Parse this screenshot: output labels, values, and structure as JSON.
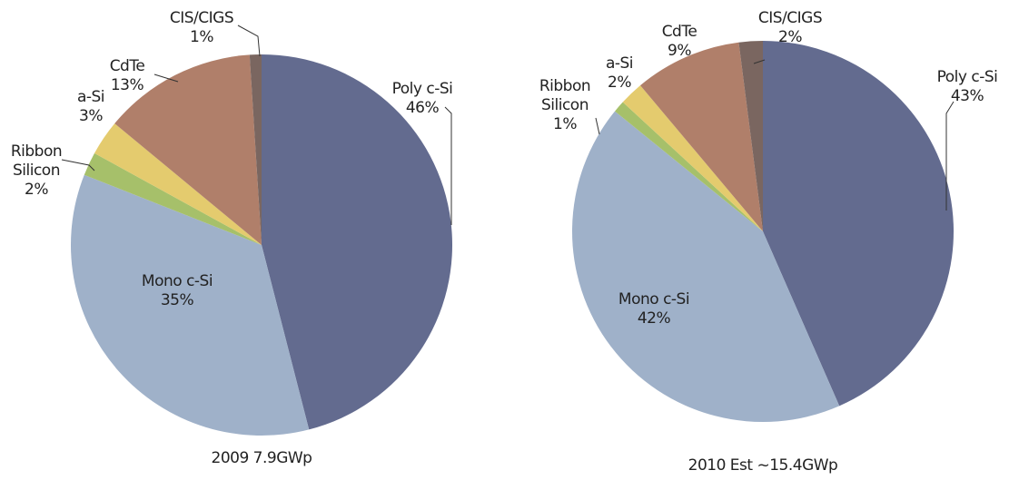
{
  "chart_data": [
    {
      "type": "pie",
      "title": "2009 7.9GWp",
      "categories": [
        "Poly c-Si",
        "Mono c-Si",
        "Ribbon Silicon",
        "a-Si",
        "CdTe",
        "CIS/CIGS"
      ],
      "values": [
        46,
        35,
        2,
        3,
        13,
        1
      ],
      "value_labels": [
        "46%",
        "35%",
        "2%",
        "3%",
        "13%",
        "1%"
      ],
      "colors": [
        "#636b8f",
        "#9fb1c9",
        "#a6c06a",
        "#e4cb6e",
        "#b07f6a",
        "#7a6660"
      ]
    },
    {
      "type": "pie",
      "title": "2010 Est ~15.4GWp",
      "categories": [
        "Poly c-Si",
        "Mono c-Si",
        "Ribbon Silicon",
        "a-Si",
        "CdTe",
        "CIS/CIGS"
      ],
      "values": [
        43,
        42,
        1,
        2,
        9,
        2
      ],
      "value_labels": [
        "43%",
        "42%",
        "1%",
        "2%",
        "9%",
        "2%"
      ],
      "colors": [
        "#636b8f",
        "#9fb1c9",
        "#a6c06a",
        "#e4cb6e",
        "#b07f6a",
        "#7a6660"
      ]
    }
  ]
}
